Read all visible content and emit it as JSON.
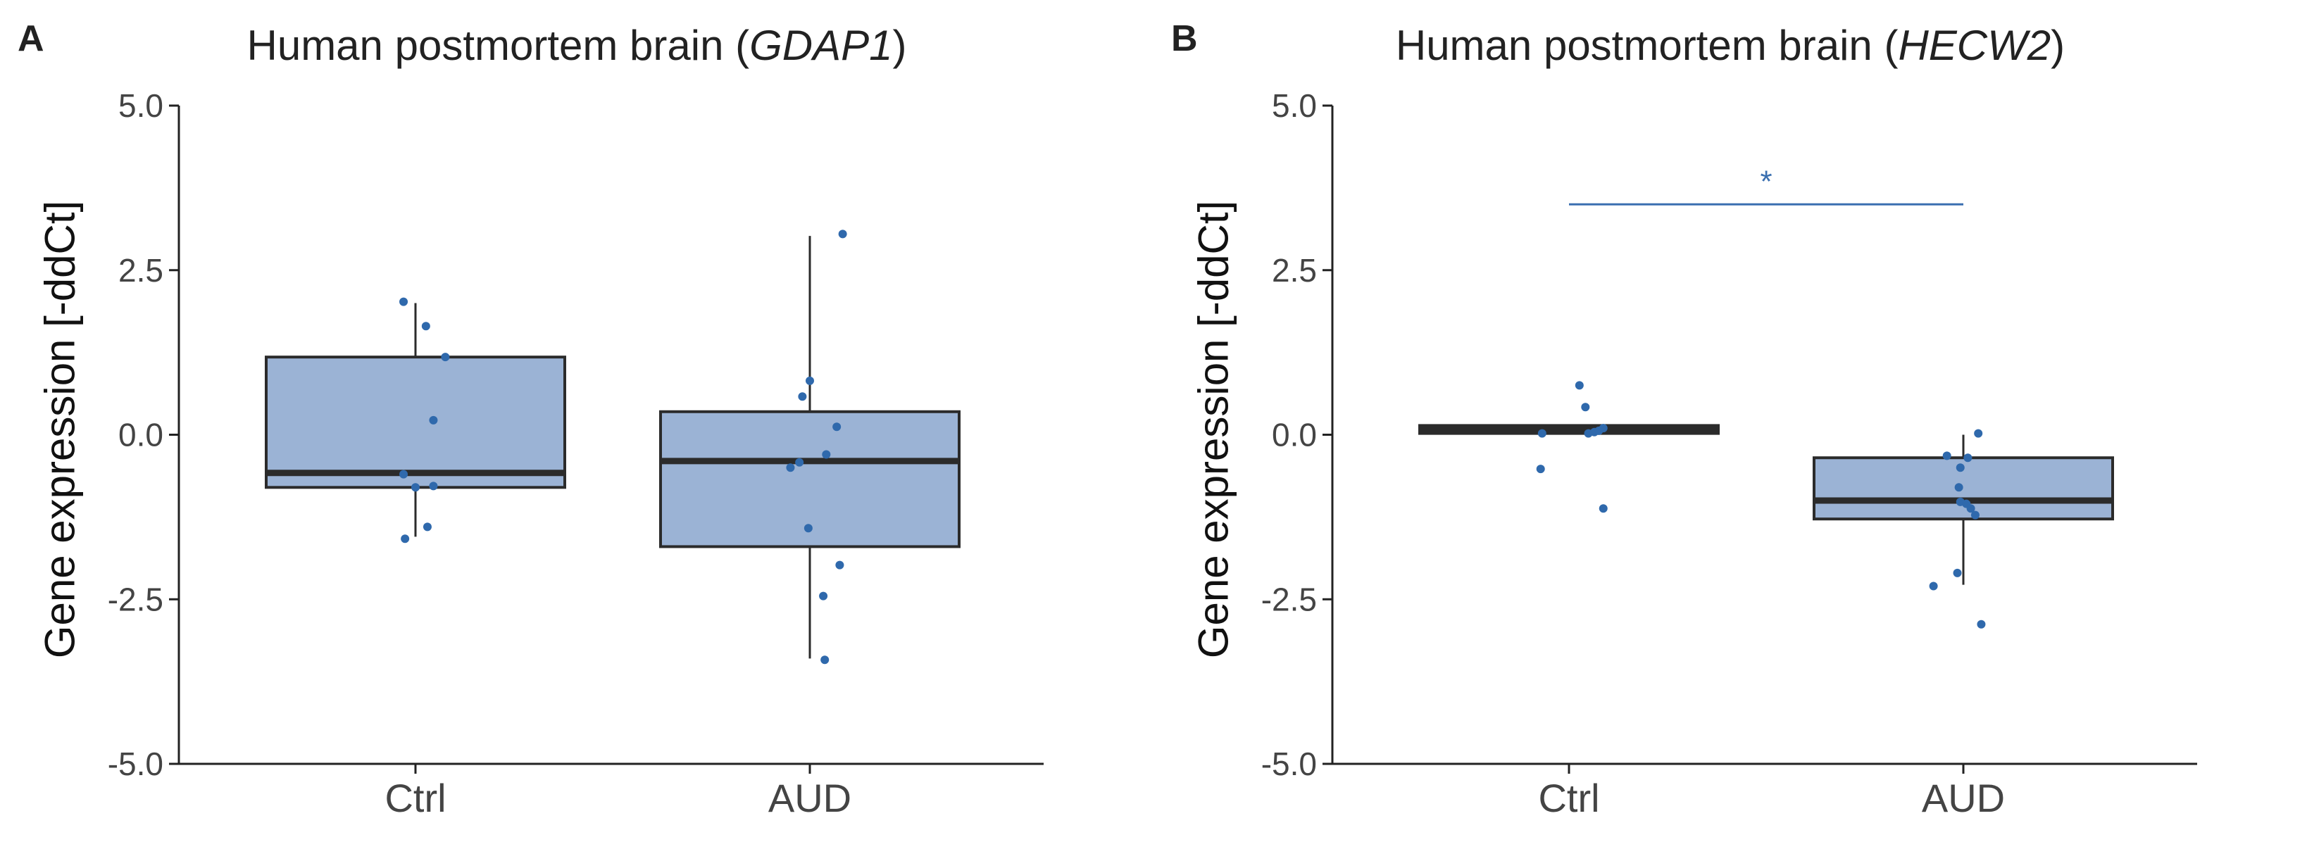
{
  "chart_data": [
    {
      "panel": "A",
      "type": "boxplot",
      "title_prefix": "Human postmortem brain (",
      "gene": "GDAP1",
      "title_suffix": ")",
      "ylabel": "Gene expression [-ddCt]",
      "ylim": [
        -5.0,
        5.0
      ],
      "yticks": [
        5.0,
        2.5,
        0.0,
        -2.5,
        -5.0
      ],
      "ytick_labels": [
        "5.0",
        "2.5",
        "0.0",
        "-2.5",
        "-5.0"
      ],
      "categories": [
        "Ctrl",
        "AUD"
      ],
      "boxes": [
        {
          "group": "Ctrl",
          "whisker_low": -1.55,
          "q1": -0.8,
          "median": -0.58,
          "q3": 1.18,
          "whisker_high": 2.0
        },
        {
          "group": "AUD",
          "whisker_low": -3.4,
          "q1": -1.7,
          "median": -0.4,
          "q3": 0.35,
          "whisker_high": 3.02
        }
      ],
      "points": [
        {
          "group": "Ctrl",
          "jitter": -0.08,
          "value": 2.02
        },
        {
          "group": "Ctrl",
          "jitter": 0.07,
          "value": 1.65
        },
        {
          "group": "Ctrl",
          "jitter": 0.2,
          "value": 1.18
        },
        {
          "group": "Ctrl",
          "jitter": 0.12,
          "value": 0.22
        },
        {
          "group": "Ctrl",
          "jitter": -0.08,
          "value": -0.6
        },
        {
          "group": "Ctrl",
          "jitter": 0.12,
          "value": -0.78
        },
        {
          "group": "Ctrl",
          "jitter": 0.0,
          "value": -0.8
        },
        {
          "group": "Ctrl",
          "jitter": 0.08,
          "value": -1.4
        },
        {
          "group": "Ctrl",
          "jitter": -0.07,
          "value": -1.58
        },
        {
          "group": "AUD",
          "jitter": 0.22,
          "value": 3.05
        },
        {
          "group": "AUD",
          "jitter": 0.0,
          "value": 0.82
        },
        {
          "group": "AUD",
          "jitter": -0.05,
          "value": 0.58
        },
        {
          "group": "AUD",
          "jitter": 0.18,
          "value": 0.12
        },
        {
          "group": "AUD",
          "jitter": 0.11,
          "value": -0.3
        },
        {
          "group": "AUD",
          "jitter": -0.07,
          "value": -0.42
        },
        {
          "group": "AUD",
          "jitter": -0.13,
          "value": -0.5
        },
        {
          "group": "AUD",
          "jitter": -0.01,
          "value": -1.42
        },
        {
          "group": "AUD",
          "jitter": 0.2,
          "value": -1.98
        },
        {
          "group": "AUD",
          "jitter": 0.09,
          "value": -2.45
        },
        {
          "group": "AUD",
          "jitter": 0.1,
          "value": -3.42
        }
      ],
      "significance": null
    },
    {
      "panel": "B",
      "type": "boxplot",
      "title_prefix": "Human postmortem brain (",
      "gene": "HECW2",
      "title_suffix": ")",
      "ylabel": "Gene expression [-ddCt]",
      "ylim": [
        -5.0,
        5.0
      ],
      "yticks": [
        5.0,
        2.5,
        0.0,
        -2.5,
        -5.0
      ],
      "ytick_labels": [
        "5.0",
        "2.5",
        "0.0",
        "-2.5",
        "-5.0"
      ],
      "categories": [
        "Ctrl",
        "AUD"
      ],
      "boxes": [
        {
          "group": "Ctrl",
          "whisker_low": 0.0,
          "q1": 0.02,
          "median": 0.08,
          "q3": 0.14,
          "whisker_high": 0.14
        },
        {
          "group": "AUD",
          "whisker_low": -2.28,
          "q1": -1.28,
          "median": -1.0,
          "q3": -0.35,
          "whisker_high": 0.0
        }
      ],
      "points": [
        {
          "group": "Ctrl",
          "jitter": 0.07,
          "value": 0.75
        },
        {
          "group": "Ctrl",
          "jitter": 0.11,
          "value": 0.42
        },
        {
          "group": "Ctrl",
          "jitter": -0.18,
          "value": 0.02
        },
        {
          "group": "Ctrl",
          "jitter": 0.13,
          "value": 0.02
        },
        {
          "group": "Ctrl",
          "jitter": 0.17,
          "value": 0.04
        },
        {
          "group": "Ctrl",
          "jitter": 0.2,
          "value": 0.06
        },
        {
          "group": "Ctrl",
          "jitter": 0.23,
          "value": 0.1
        },
        {
          "group": "Ctrl",
          "jitter": -0.19,
          "value": -0.52
        },
        {
          "group": "Ctrl",
          "jitter": 0.23,
          "value": -1.12
        },
        {
          "group": "AUD",
          "jitter": 0.1,
          "value": 0.02
        },
        {
          "group": "AUD",
          "jitter": -0.11,
          "value": -0.32
        },
        {
          "group": "AUD",
          "jitter": 0.03,
          "value": -0.35
        },
        {
          "group": "AUD",
          "jitter": -0.02,
          "value": -0.5
        },
        {
          "group": "AUD",
          "jitter": -0.03,
          "value": -0.8
        },
        {
          "group": "AUD",
          "jitter": -0.02,
          "value": -1.02
        },
        {
          "group": "AUD",
          "jitter": 0.02,
          "value": -1.05
        },
        {
          "group": "AUD",
          "jitter": 0.05,
          "value": -1.12
        },
        {
          "group": "AUD",
          "jitter": 0.08,
          "value": -1.22
        },
        {
          "group": "AUD",
          "jitter": -0.04,
          "value": -2.1
        },
        {
          "group": "AUD",
          "jitter": -0.2,
          "value": -2.3
        },
        {
          "group": "AUD",
          "jitter": 0.12,
          "value": -2.88
        }
      ],
      "significance": {
        "from": "Ctrl",
        "to": "AUD",
        "y": 3.5,
        "label": "*"
      }
    }
  ],
  "colors": {
    "box_fill": "#9bb3d5",
    "box_stroke": "#2b2b2b",
    "point": "#2f69ac",
    "significance": "#3a6fb0",
    "axis": "#222222"
  }
}
